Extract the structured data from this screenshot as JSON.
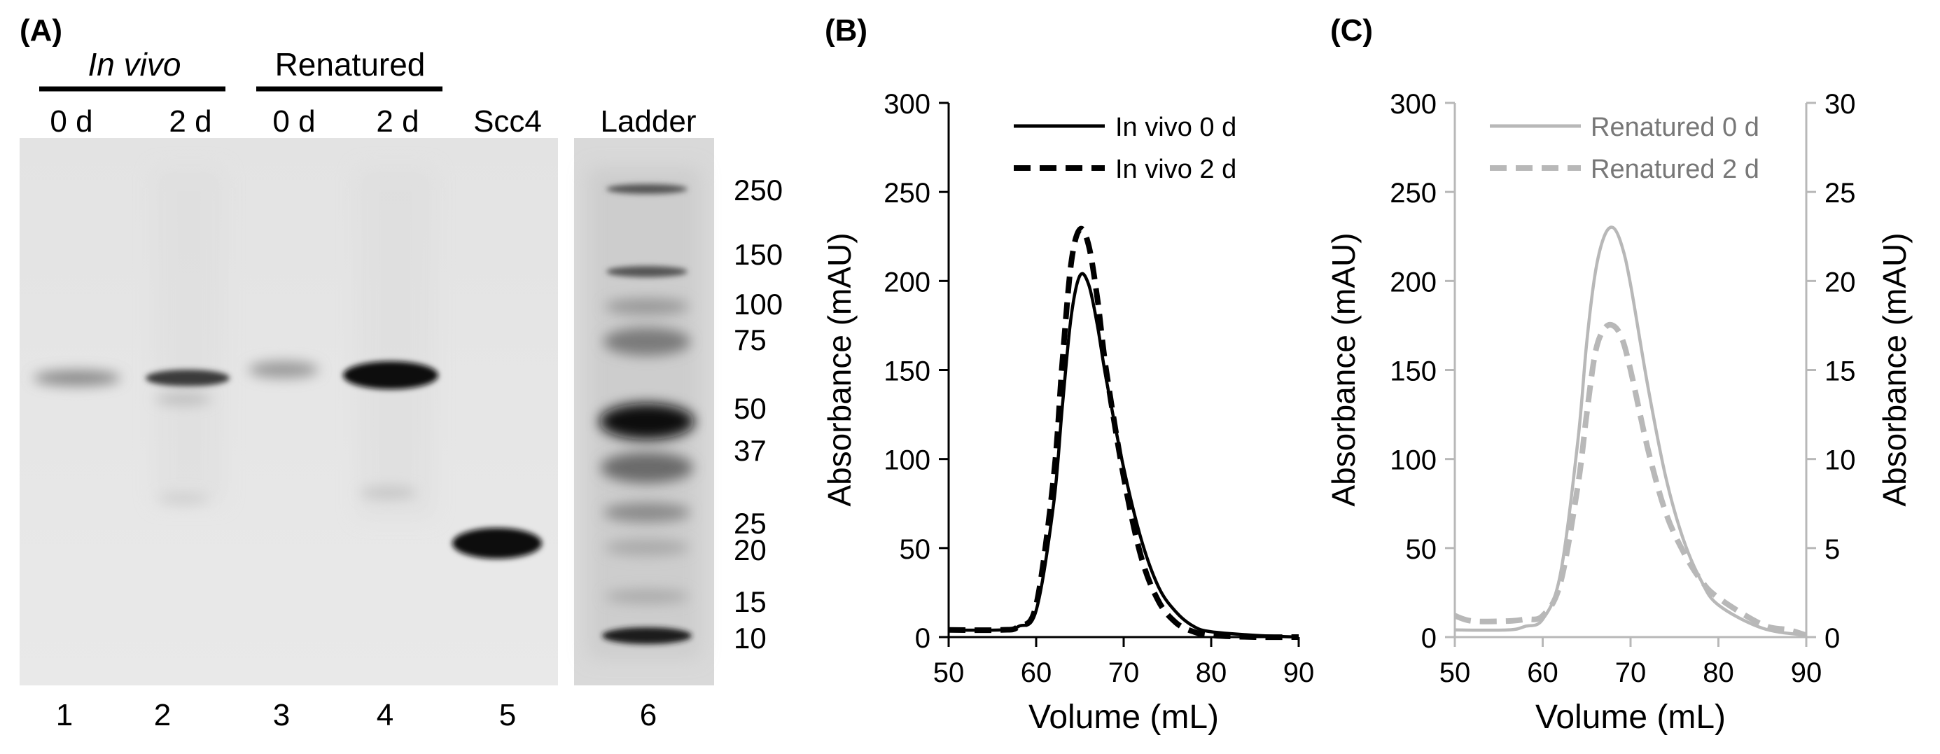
{
  "panel_a": {
    "label": "(A)",
    "groups": [
      {
        "name": "In vivo",
        "italic": true
      },
      {
        "name": "Renatured",
        "italic": false
      }
    ],
    "lane_headers": [
      "0 d",
      "2 d",
      "0 d",
      "2 d",
      "Scc4",
      "Ladder"
    ],
    "lane_numbers": [
      "1",
      "2",
      "3",
      "4",
      "5",
      "6"
    ],
    "mw_markers": [
      "250",
      "150",
      "100",
      "75",
      "50",
      "37",
      "25",
      "20",
      "15",
      "10"
    ]
  },
  "chart_data": [
    {
      "type": "line",
      "panel_label": "(B)",
      "xlabel": "Volume (mL)",
      "ylabel": "Absorbance (mAU)",
      "xlim": [
        50,
        90
      ],
      "ylim": [
        0,
        300
      ],
      "x_ticks": [
        "50",
        "60",
        "70",
        "80",
        "90"
      ],
      "y_ticks": [
        "0",
        "50",
        "100",
        "150",
        "200",
        "250",
        "300"
      ],
      "legend_position": "top-right",
      "series": [
        {
          "name": "In vivo 0 d",
          "style": "solid",
          "color": "#000000",
          "x": [
            50,
            56,
            58,
            60,
            62,
            63,
            64,
            65,
            66,
            67,
            68,
            70,
            72,
            74,
            76,
            78,
            80,
            85,
            90
          ],
          "y": [
            4,
            4,
            6,
            15,
            75,
            130,
            180,
            203,
            198,
            175,
            145,
            95,
            55,
            28,
            14,
            6,
            3,
            1,
            0
          ]
        },
        {
          "name": "In vivo 2 d",
          "style": "dashed",
          "color": "#000000",
          "x": [
            50,
            56,
            58,
            60,
            62,
            63,
            64,
            65,
            66,
            67,
            68,
            70,
            72,
            74,
            76,
            78,
            80,
            85,
            90
          ],
          "y": [
            4,
            4,
            6,
            18,
            90,
            155,
            210,
            229,
            220,
            190,
            150,
            90,
            45,
            20,
            8,
            3,
            1,
            0,
            0
          ]
        }
      ]
    },
    {
      "type": "line",
      "panel_label": "(C)",
      "xlabel": "Volume (mL)",
      "ylabel": "Absorbance (mAU)",
      "y2label": "Absorbance (mAU)",
      "xlim": [
        50,
        90
      ],
      "ylim": [
        0,
        300
      ],
      "y2lim": [
        0,
        30
      ],
      "x_ticks": [
        "50",
        "60",
        "70",
        "80",
        "90"
      ],
      "y_ticks": [
        "0",
        "50",
        "100",
        "150",
        "200",
        "250",
        "300"
      ],
      "y2_ticks": [
        "0",
        "5",
        "10",
        "15",
        "20",
        "25",
        "30"
      ],
      "legend_position": "top-right",
      "series": [
        {
          "name": "Renatured 0 d",
          "style": "solid",
          "color": "#b8b8b8",
          "axis": "left",
          "x": [
            50,
            56,
            58,
            60,
            62,
            64,
            65,
            66,
            67,
            68,
            69,
            70,
            72,
            74,
            76,
            78,
            80,
            85,
            90
          ],
          "y": [
            4,
            4,
            6,
            10,
            35,
            110,
            165,
            205,
            225,
            230,
            220,
            198,
            140,
            90,
            55,
            32,
            18,
            5,
            1
          ]
        },
        {
          "name": "Renatured 2 d",
          "style": "dashed",
          "color": "#b8b8b8",
          "axis": "right",
          "x": [
            50,
            52,
            56,
            58,
            60,
            62,
            64,
            65,
            66,
            67,
            68,
            69,
            70,
            72,
            74,
            76,
            78,
            80,
            85,
            88,
            90
          ],
          "y": [
            1.2,
            0.9,
            0.9,
            1.0,
            1.2,
            3.0,
            8.5,
            12.5,
            16.0,
            17.3,
            17.5,
            16.8,
            15.0,
            10.5,
            7.0,
            4.8,
            3.2,
            2.2,
            0.7,
            0.4,
            0.1
          ]
        }
      ]
    }
  ]
}
